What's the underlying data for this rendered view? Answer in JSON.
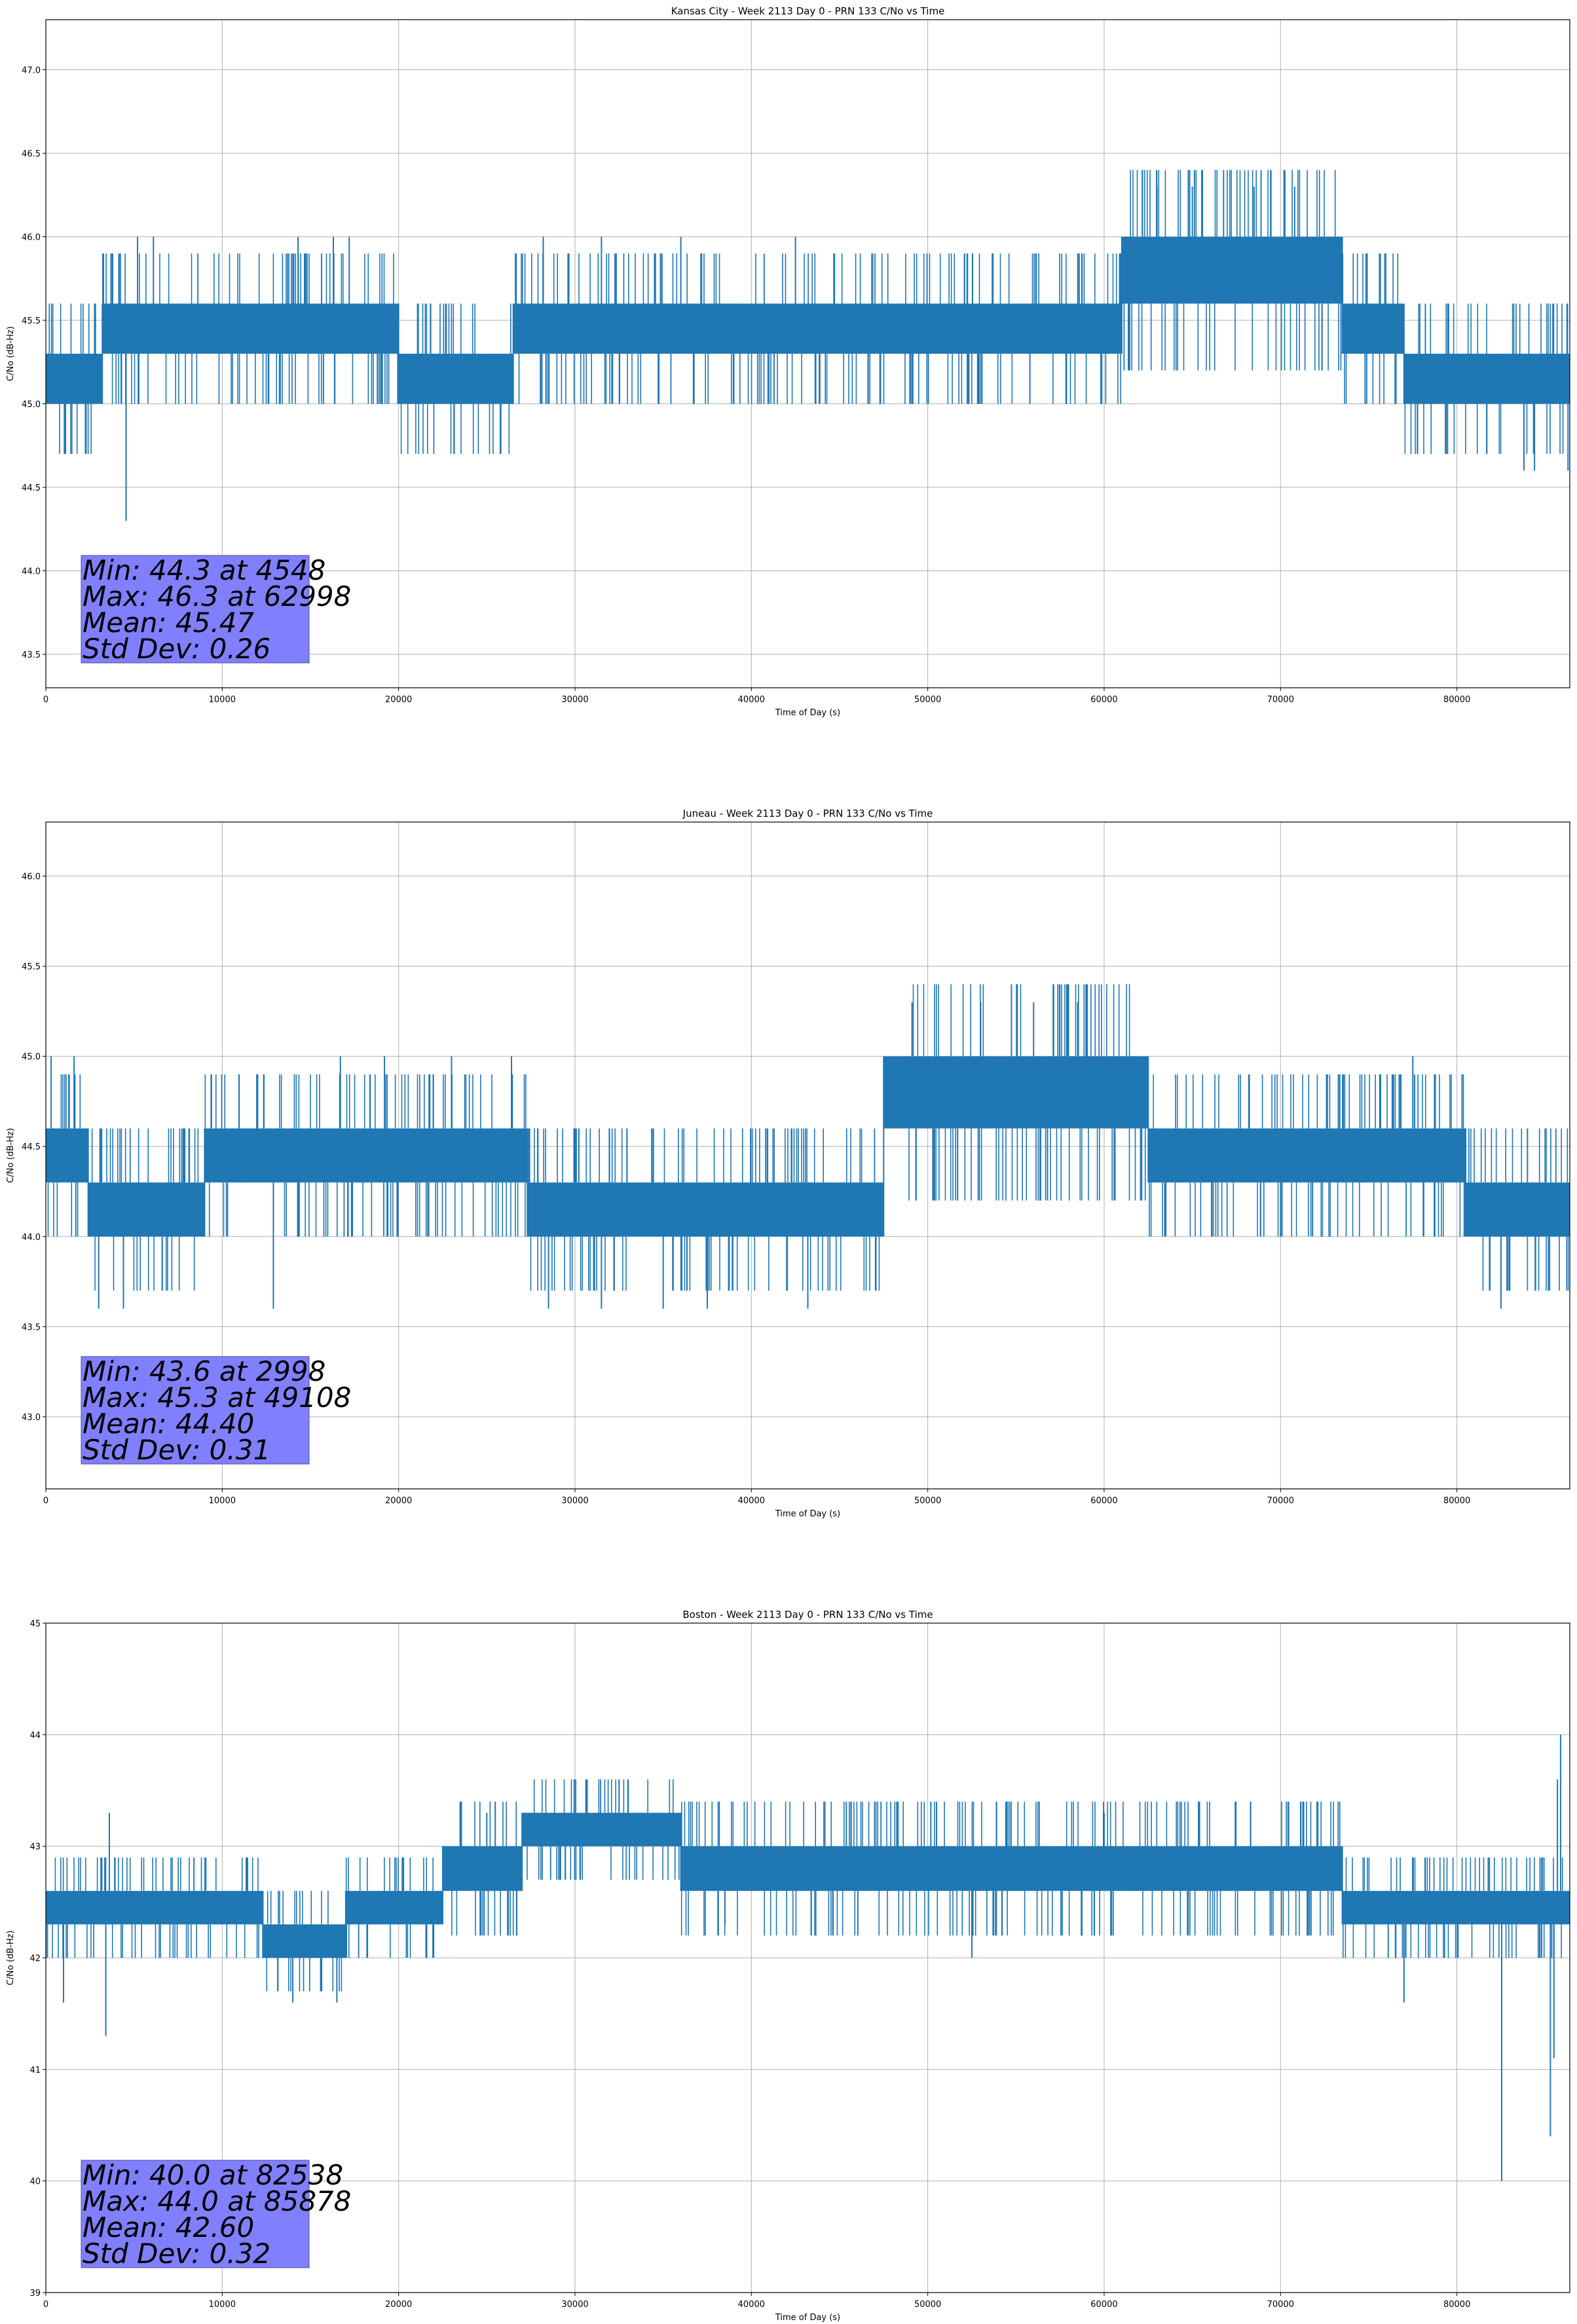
{
  "chart_data": [
    {
      "type": "line",
      "title": "Kansas City - Week 2113 Day 0 - PRN 133 C/No vs Time",
      "xlabel": "Time of Day (s)",
      "ylabel": "C/No (dB-Hz)",
      "xlim": [
        0,
        86400
      ],
      "ylim": [
        43.3,
        47.3
      ],
      "xticks": [
        0,
        10000,
        20000,
        30000,
        40000,
        50000,
        60000,
        70000,
        80000
      ],
      "yticks": [
        43.5,
        44.0,
        44.5,
        45.0,
        45.5,
        46.0,
        46.5,
        47.0
      ],
      "ytick_labels": [
        "43.5",
        "44.0",
        "44.5",
        "45.0",
        "45.5",
        "46.0",
        "46.5",
        "47.0"
      ],
      "grid": true,
      "series_color": "#1f77b4",
      "segments": [
        {
          "x0": 0,
          "x1": 3200,
          "low": 45.0,
          "high": 45.3
        },
        {
          "x0": 3200,
          "x1": 20000,
          "low": 45.3,
          "high": 45.6
        },
        {
          "x0": 20000,
          "x1": 26500,
          "low": 45.0,
          "high": 45.3
        },
        {
          "x0": 26500,
          "x1": 61000,
          "low": 45.3,
          "high": 45.6
        },
        {
          "x0": 61000,
          "x1": 73500,
          "low": 45.6,
          "high": 46.0
        },
        {
          "x0": 73500,
          "x1": 77000,
          "low": 45.3,
          "high": 45.6
        },
        {
          "x0": 77000,
          "x1": 86400,
          "low": 45.0,
          "high": 45.3
        }
      ],
      "spikes": [
        {
          "x": 4548,
          "y": 44.3
        },
        {
          "x": 5200,
          "y": 46.0
        },
        {
          "x": 6100,
          "y": 46.0
        },
        {
          "x": 14300,
          "y": 46.0
        },
        {
          "x": 16300,
          "y": 46.0
        },
        {
          "x": 17200,
          "y": 46.0
        },
        {
          "x": 28200,
          "y": 46.0
        },
        {
          "x": 31500,
          "y": 46.0
        },
        {
          "x": 36000,
          "y": 46.0
        },
        {
          "x": 42500,
          "y": 46.0
        },
        {
          "x": 62998,
          "y": 46.3
        },
        {
          "x": 65000,
          "y": 46.3
        },
        {
          "x": 68500,
          "y": 46.3
        },
        {
          "x": 70800,
          "y": 46.3
        },
        {
          "x": 83800,
          "y": 44.6
        },
        {
          "x": 84400,
          "y": 44.6
        },
        {
          "x": 86300,
          "y": 44.6
        }
      ],
      "stats": {
        "lines": [
          "Min: 44.3 at 4548",
          "Max: 46.3 at 62998",
          "Mean: 45.47",
          "Std Dev: 0.26"
        ],
        "color": "#8080ff"
      }
    },
    {
      "type": "line",
      "title": "Juneau - Week 2113 Day 0 - PRN 133 C/No vs Time",
      "xlabel": "Time of Day (s)",
      "ylabel": "C/No (dB-Hz)",
      "xlim": [
        0,
        86400
      ],
      "ylim": [
        42.6,
        46.3
      ],
      "xticks": [
        0,
        10000,
        20000,
        30000,
        40000,
        50000,
        60000,
        70000,
        80000
      ],
      "yticks": [
        43.0,
        43.5,
        44.0,
        44.5,
        45.0,
        45.5,
        46.0
      ],
      "ytick_labels": [
        "43.0",
        "43.5",
        "44.0",
        "44.5",
        "45.0",
        "45.5",
        "46.0"
      ],
      "grid": true,
      "series_color": "#1f77b4",
      "segments": [
        {
          "x0": 0,
          "x1": 2400,
          "low": 44.3,
          "high": 44.6
        },
        {
          "x0": 2400,
          "x1": 9000,
          "low": 44.0,
          "high": 44.3
        },
        {
          "x0": 9000,
          "x1": 27300,
          "low": 44.3,
          "high": 44.6
        },
        {
          "x0": 27300,
          "x1": 47500,
          "low": 44.0,
          "high": 44.3
        },
        {
          "x0": 47500,
          "x1": 62500,
          "low": 44.6,
          "high": 45.0
        },
        {
          "x0": 62500,
          "x1": 80500,
          "low": 44.3,
          "high": 44.6
        },
        {
          "x0": 80500,
          "x1": 86400,
          "low": 44.0,
          "high": 44.3
        }
      ],
      "spikes": [
        {
          "x": 300,
          "y": 45.0
        },
        {
          "x": 1600,
          "y": 45.0
        },
        {
          "x": 2998,
          "y": 43.6
        },
        {
          "x": 4400,
          "y": 43.6
        },
        {
          "x": 12900,
          "y": 43.6
        },
        {
          "x": 16700,
          "y": 45.0
        },
        {
          "x": 19200,
          "y": 45.0
        },
        {
          "x": 23000,
          "y": 45.0
        },
        {
          "x": 26400,
          "y": 45.0
        },
        {
          "x": 28500,
          "y": 43.6
        },
        {
          "x": 31500,
          "y": 43.6
        },
        {
          "x": 35000,
          "y": 43.6
        },
        {
          "x": 37500,
          "y": 43.6
        },
        {
          "x": 43200,
          "y": 43.6
        },
        {
          "x": 49108,
          "y": 45.3
        },
        {
          "x": 53000,
          "y": 45.3
        },
        {
          "x": 56000,
          "y": 45.3
        },
        {
          "x": 58500,
          "y": 45.3
        },
        {
          "x": 70000,
          "y": 44.0
        },
        {
          "x": 77500,
          "y": 45.0
        },
        {
          "x": 82500,
          "y": 43.6
        },
        {
          "x": 84000,
          "y": 44.6
        }
      ],
      "stats": {
        "lines": [
          "Min: 43.6 at 2998",
          "Max: 45.3 at 49108",
          "Mean: 44.40",
          "Std Dev: 0.31"
        ],
        "color": "#8080ff"
      }
    },
    {
      "type": "line",
      "title": "Boston - Week 2113 Day 0 - PRN 133 C/No vs Time",
      "xlabel": "Time of Day (s)",
      "ylabel": "C/No (dB-Hz)",
      "xlim": [
        0,
        86400
      ],
      "ylim": [
        39,
        45
      ],
      "xticks": [
        0,
        10000,
        20000,
        30000,
        40000,
        50000,
        60000,
        70000,
        80000
      ],
      "yticks": [
        39,
        40,
        41,
        42,
        43,
        44,
        45
      ],
      "ytick_labels": [
        "39",
        "40",
        "41",
        "42",
        "43",
        "44",
        "45"
      ],
      "grid": true,
      "series_color": "#1f77b4",
      "segments": [
        {
          "x0": 0,
          "x1": 12300,
          "low": 42.3,
          "high": 42.6
        },
        {
          "x0": 12300,
          "x1": 17000,
          "low": 42.0,
          "high": 42.3
        },
        {
          "x0": 17000,
          "x1": 22500,
          "low": 42.3,
          "high": 42.6
        },
        {
          "x0": 22500,
          "x1": 25000,
          "low": 42.6,
          "high": 43.0
        },
        {
          "x0": 25000,
          "x1": 27000,
          "low": 42.6,
          "high": 43.0
        },
        {
          "x0": 27000,
          "x1": 36000,
          "low": 43.0,
          "high": 43.3
        },
        {
          "x0": 36000,
          "x1": 73500,
          "low": 42.6,
          "high": 43.0
        },
        {
          "x0": 73500,
          "x1": 80000,
          "low": 42.3,
          "high": 42.6
        },
        {
          "x0": 80000,
          "x1": 86400,
          "low": 42.3,
          "high": 42.6
        }
      ],
      "spikes": [
        {
          "x": 1000,
          "y": 41.6
        },
        {
          "x": 3400,
          "y": 41.3
        },
        {
          "x": 3600,
          "y": 43.3
        },
        {
          "x": 14000,
          "y": 41.6
        },
        {
          "x": 16500,
          "y": 41.6
        },
        {
          "x": 25000,
          "y": 43.3
        },
        {
          "x": 32500,
          "y": 43.6
        },
        {
          "x": 38500,
          "y": 42.3
        },
        {
          "x": 52500,
          "y": 42.0
        },
        {
          "x": 60000,
          "y": 43.3
        },
        {
          "x": 73500,
          "y": 43.0
        },
        {
          "x": 77000,
          "y": 41.6
        },
        {
          "x": 82538,
          "y": 40.0
        },
        {
          "x": 84800,
          "y": 42.0
        },
        {
          "x": 85300,
          "y": 40.4
        },
        {
          "x": 85500,
          "y": 41.1
        },
        {
          "x": 85700,
          "y": 43.6
        },
        {
          "x": 85878,
          "y": 44.0
        }
      ],
      "stats": {
        "lines": [
          "Min: 40.0 at 82538",
          "Max: 44.0 at 85878",
          "Mean: 42.60",
          "Std Dev: 0.32"
        ],
        "color": "#8080ff"
      }
    }
  ]
}
